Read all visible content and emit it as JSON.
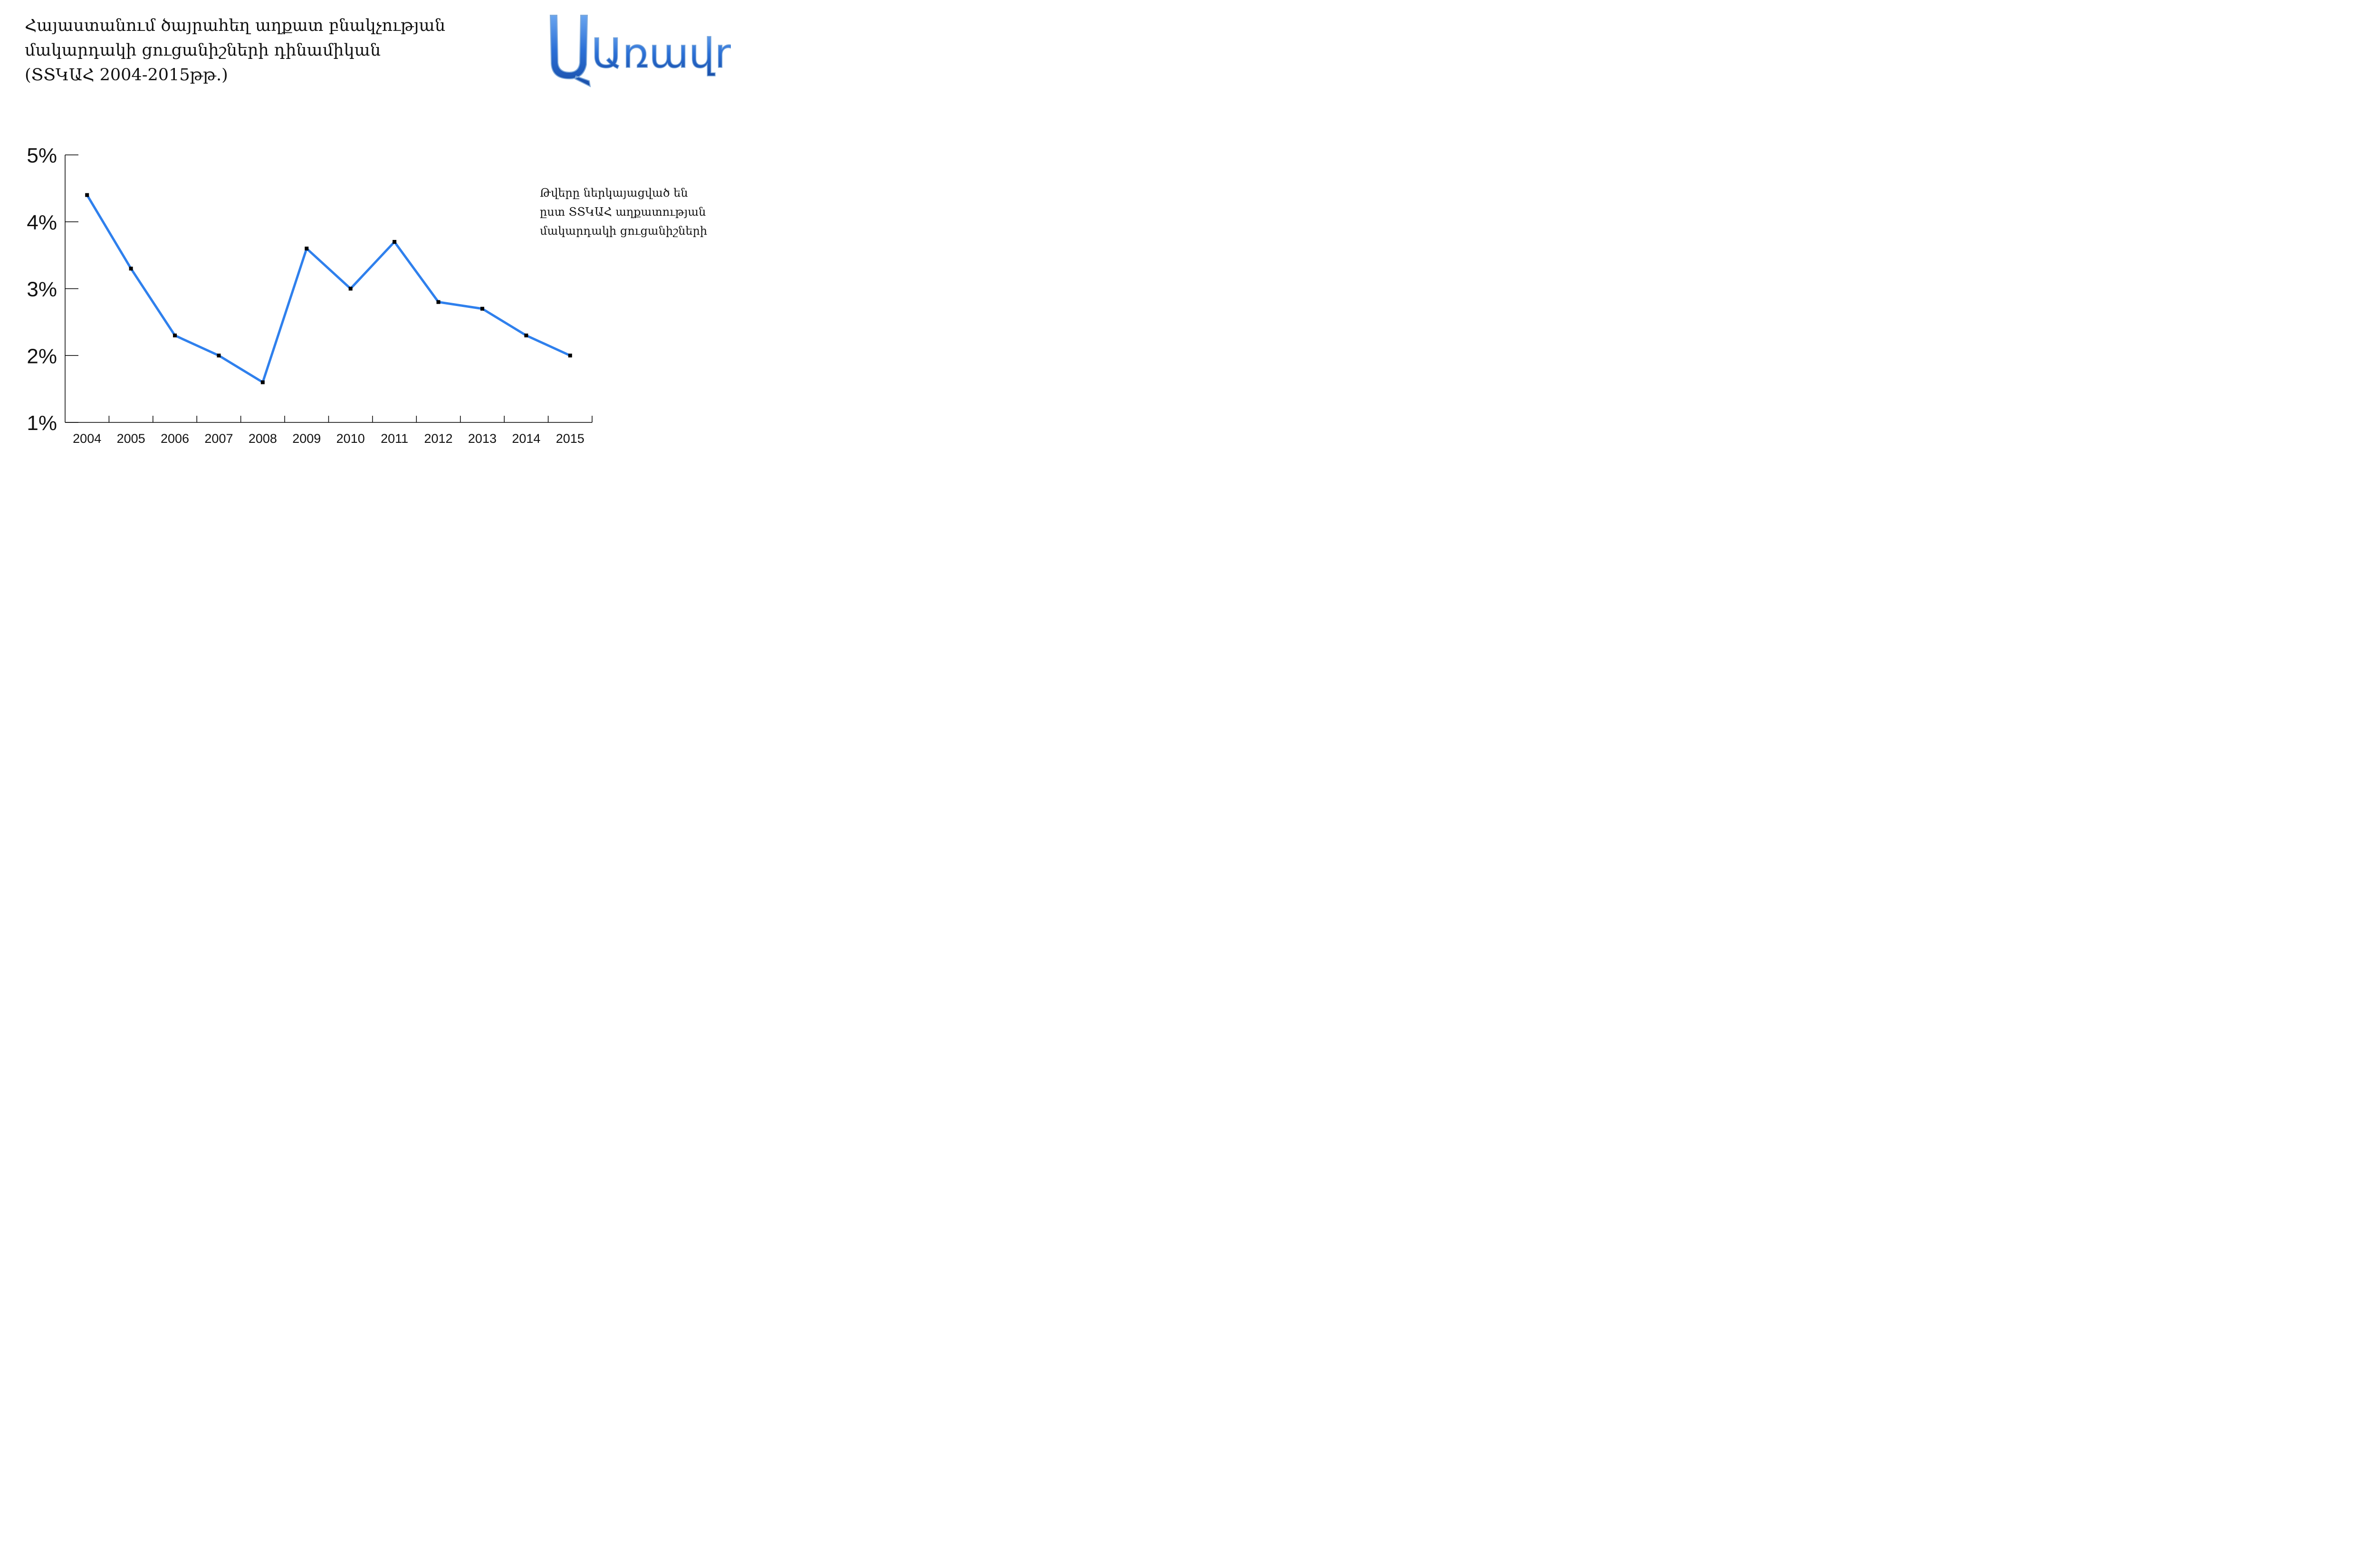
{
  "title": {
    "line1": "Հայաստանում ծայրահեղ աղքատ բնակչության",
    "line2": "մակարդակի ցուցանիշների դինամիկան",
    "line3": "(ՏՏԿԱՀ 2004-2015թթ.)"
  },
  "logo": {
    "text": "Առավոտ",
    "color": "#1e5fc4"
  },
  "note": {
    "line1": "Թվերը ներկայացված են",
    "line2": "ըստ ՏՏԿԱՀ աղքատության",
    "line3": "մակարդակի ցուցանիշների"
  },
  "chart_data": {
    "type": "line",
    "categories": [
      "2004",
      "2005",
      "2006",
      "2007",
      "2008",
      "2009",
      "2010",
      "2011",
      "2012",
      "2013",
      "2014",
      "2015"
    ],
    "series": [
      {
        "values": [
          4.4,
          3.3,
          2.3,
          2.0,
          1.6,
          3.6,
          3.0,
          3.7,
          2.8,
          2.7,
          2.3,
          2.0
        ],
        "color": "#2f80ed"
      }
    ],
    "ylim": [
      1,
      5
    ],
    "yticks": [
      "1%",
      "2%",
      "3%",
      "4%",
      "5%"
    ],
    "grid": false
  }
}
